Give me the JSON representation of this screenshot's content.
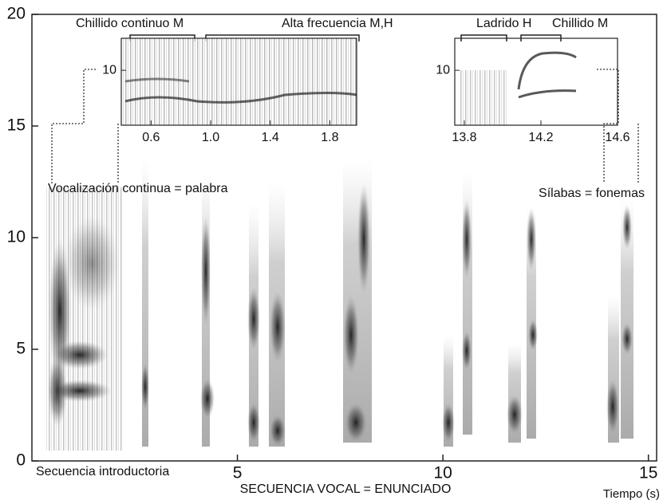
{
  "chart_data": {
    "type": "spectrogram",
    "xlabel": "Tiempo (s)",
    "caption": "SECUENCIA VOCAL = ENUNCIADO",
    "xlim": [
      0,
      15.2
    ],
    "ylim": [
      0,
      20
    ],
    "xticks": [
      5,
      10,
      15
    ],
    "yticks": [
      0,
      5,
      10,
      15,
      20
    ],
    "annotations": [
      "Secuencia introductoria",
      "Vocalización continua = palabra",
      "Sílabas =  fonemas"
    ],
    "insets": [
      {
        "xlim": [
          0.4,
          1.98
        ],
        "ylim": [
          4,
          13.5
        ],
        "xticks": [
          0.6,
          {
            "value": 1,
            "label": "1.0"
          },
          1.4,
          1.8
        ],
        "yticks": [
          10
        ],
        "labels": [
          "Chillido continuo M",
          "Alta  frecuencia M,H"
        ]
      },
      {
        "xlim": [
          13.75,
          14.6
        ],
        "ylim": [
          4,
          13.5
        ],
        "xticks": [
          13.8,
          14.2,
          14.6
        ],
        "yticks": [
          10
        ],
        "labels": [
          "Ladrido H",
          "Chillido M"
        ]
      }
    ]
  }
}
